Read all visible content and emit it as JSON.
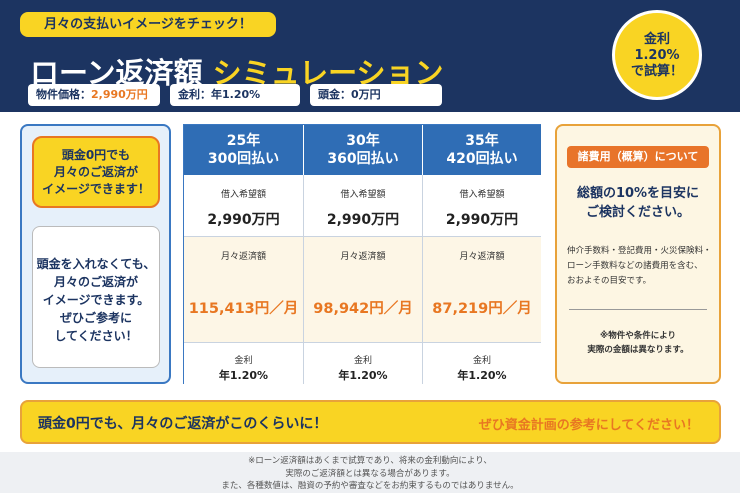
{
  "header": {
    "tag": "月々の支払いイメージをチェック！",
    "title_main": "ローン返済額",
    "title_accent": "シミュレーション",
    "info": [
      {
        "label": "物件価格：",
        "value": "2,990万円"
      },
      {
        "label": "金利：",
        "value": "年1.20%"
      },
      {
        "label": "頭金：",
        "value": "0万円"
      }
    ],
    "badge": [
      "金利",
      "1.20%",
      "で試算！"
    ]
  },
  "left_panel": {
    "callout": [
      "頭金0円でも",
      "月々のご返済が",
      "イメージできます！"
    ],
    "message": [
      "頭金を入れなくても、",
      "月々のご返済が",
      "イメージできます。",
      "ぜひご参考に",
      "してください！"
    ]
  },
  "table": {
    "columns": [
      {
        "years": "25年",
        "payments": "300回払い",
        "loan_label": "借入希望額",
        "loan": "2,990万円",
        "monthly_label": "月々返済額",
        "monthly": "115,413円／月",
        "rate_label": "金利",
        "rate": "年1.20%"
      },
      {
        "years": "30年",
        "payments": "360回払い",
        "loan_label": "借入希望額",
        "loan": "2,990万円",
        "monthly_label": "月々返済額",
        "monthly": "98,942円／月",
        "rate_label": "金利",
        "rate": "年1.20%"
      },
      {
        "years": "35年",
        "payments": "420回払い",
        "loan_label": "借入希望額",
        "loan": "2,990万円",
        "monthly_label": "月々返済額",
        "monthly": "87,219円／月",
        "rate_label": "金利",
        "rate": "年1.20%"
      }
    ]
  },
  "right_panel": {
    "label": "諸費用（概算）について",
    "headline": [
      "総額の10%を目安に",
      "ご検討ください。"
    ],
    "body": [
      "仲介手数料・登記費用・火災保険料・",
      "ローン手数料などの諸費用を含む、",
      "おおよその目安です。"
    ],
    "note": [
      "※物件や条件により",
      "実際の金額は異なります。"
    ]
  },
  "banner": {
    "left": "頭金0円でも、月々のご返済がこのくらいに！",
    "right": "ぜひ資金計画の参考にしてください！"
  },
  "footer": [
    "※ローン返済額はあくまで試算であり、将来の金利動向により、",
    "実際のご返済額とは異なる場合があります。",
    "また、各種数値は、融資の予約や審査などをお約束するものではありません。"
  ]
}
